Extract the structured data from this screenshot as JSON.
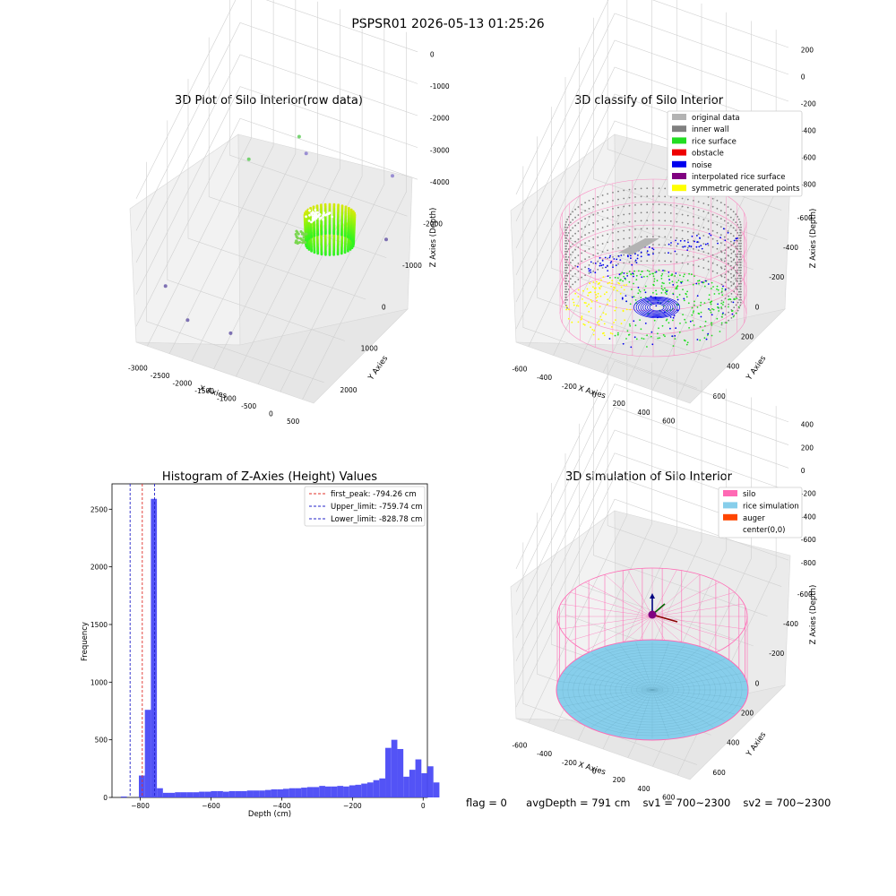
{
  "figure_title": "PSPSR01 2026-05-13 01:25:26",
  "status": {
    "flag": "flag = 0",
    "avg_depth": "avgDepth = 791 cm",
    "sv1": "sv1 = 700~2300",
    "sv2": "sv2 = 700~2300"
  },
  "colors": {
    "bar": "#4a4af5",
    "first_peak": "#e0302a",
    "limit_line": "#2323c8",
    "silo": "#ff69b4",
    "rice": "#87ceeb",
    "rice_surface": "#22dd22",
    "inner_wall": "#808080",
    "original": "#b3b3b3",
    "noise": "#0000ee",
    "obstacle": "#ee0000",
    "interp": "#800080",
    "symmetric": "#ffff00",
    "auger": "#ff4500"
  },
  "chart_data": [
    {
      "type": "scatter",
      "projection": "3d",
      "title": "3D Plot of Silo Interior(row data)",
      "xlabel": "X Axies",
      "ylabel": "Y Axies",
      "zlabel": "Z Axies (Depth)",
      "x_ticks": [
        "-3000",
        "-2500",
        "-2000",
        "-1500",
        "-1000",
        "-500",
        "0",
        "500"
      ],
      "y_ticks": [
        "-2000",
        "-1000",
        "0",
        "1000",
        "2000"
      ],
      "z_ticks": [
        "0",
        "-1000",
        "-2000",
        "-3000",
        "-4000"
      ],
      "xlim": [
        -3100,
        600
      ],
      "ylim": [
        -2300,
        2400
      ],
      "zlim": [
        -4300,
        100
      ],
      "grid": true,
      "outliers": [
        {
          "x": -2950,
          "y": -1300,
          "z": -3900
        },
        {
          "x": -2350,
          "y": -1600,
          "z": -4200
        },
        {
          "x": -1500,
          "y": -1500,
          "z": -4300
        },
        {
          "x": -1400,
          "y": 1700,
          "z": -3200
        },
        {
          "x": -1950,
          "y": 300,
          "z": -1900
        },
        {
          "x": -900,
          "y": 300,
          "z": -800
        },
        {
          "x": 500,
          "y": 1200,
          "z": -4100
        },
        {
          "x": 400,
          "y": 1700,
          "z": -3000
        }
      ],
      "cluster": {
        "center": [
          0,
          0
        ],
        "radius": 700,
        "z_top": -800,
        "z_bottom": -2000,
        "color_scale": "viridis"
      }
    },
    {
      "type": "scatter",
      "projection": "3d",
      "title": "3D classify of Silo Interior",
      "xlabel": "X Axies",
      "ylabel": "Y Axies",
      "zlabel": "Z Axies (Depth)",
      "x_ticks": [
        "-600",
        "-400",
        "-200",
        "0",
        "200",
        "400",
        "600"
      ],
      "y_ticks": [
        "-600",
        "-400",
        "-200",
        "0",
        "200",
        "400",
        "600"
      ],
      "z_ticks": [
        "200",
        "0",
        "-200",
        "-400",
        "-600",
        "-800"
      ],
      "xlim": [
        -700,
        700
      ],
      "ylim": [
        -700,
        700
      ],
      "zlim": [
        -900,
        300
      ],
      "grid": true,
      "legend": [
        {
          "label": "original data",
          "color": "#b3b3b3"
        },
        {
          "label": "inner wall",
          "color": "#808080"
        },
        {
          "label": "rice surface",
          "color": "#22dd22"
        },
        {
          "label": "obstacle",
          "color": "#ee0000"
        },
        {
          "label": "noise",
          "color": "#0000ee"
        },
        {
          "label": "interpolated rice surface",
          "color": "#800080"
        },
        {
          "label": "symmetric generated points",
          "color": "#ffff00"
        }
      ],
      "legend_loc": "upper right"
    },
    {
      "type": "bar",
      "title": "Histogram of Z-Axies (Height) Values",
      "xlabel": "Depth (cm)",
      "ylabel": "Frequency",
      "x_ticks": [
        "−800",
        "−600",
        "−400",
        "−200",
        "0"
      ],
      "y_ticks": [
        "0",
        "500",
        "1000",
        "1500",
        "2000",
        "2500"
      ],
      "xlim": [
        -880,
        12
      ],
      "ylim": [
        0,
        2720
      ],
      "bin_width": 17,
      "bin_start": -855,
      "values": [
        8,
        0,
        0,
        190,
        760,
        2590,
        80,
        40,
        40,
        45,
        45,
        45,
        45,
        50,
        50,
        55,
        55,
        50,
        55,
        55,
        55,
        60,
        60,
        60,
        65,
        70,
        70,
        75,
        80,
        80,
        85,
        90,
        90,
        100,
        95,
        95,
        100,
        95,
        105,
        110,
        120,
        130,
        150,
        165,
        430,
        500,
        420,
        180,
        240,
        330,
        210,
        270,
        130
      ],
      "vlines": [
        {
          "label": "first_peak: -794.26 cm",
          "x": -794.26,
          "color": "#e0302a"
        },
        {
          "label": "Upper_limit: -759.74 cm",
          "x": -759.74,
          "color": "#2323c8"
        },
        {
          "label": "Lower_limit: -828.78 cm",
          "x": -828.78,
          "color": "#2323c8"
        }
      ],
      "legend_loc": "upper right"
    },
    {
      "type": "scatter",
      "projection": "3d",
      "title": "3D simulation of Silo Interior",
      "xlabel": "X Axies",
      "ylabel": "Y Axies",
      "zlabel": "Z Axies (Depth)",
      "x_ticks": [
        "-600",
        "-400",
        "-200",
        "0",
        "200",
        "400",
        "600"
      ],
      "y_ticks": [
        "-600",
        "-400",
        "-200",
        "0",
        "200",
        "400",
        "600"
      ],
      "z_ticks": [
        "400",
        "200",
        "0",
        "-200",
        "-400",
        "-600",
        "-800"
      ],
      "xlim": [
        -700,
        700
      ],
      "ylim": [
        -700,
        700
      ],
      "zlim": [
        -900,
        450
      ],
      "grid": true,
      "legend": [
        {
          "label": "silo",
          "color": "#ff69b4"
        },
        {
          "label": "rice simulation",
          "color": "#87ceeb"
        },
        {
          "label": "auger",
          "color": "#ff4500"
        },
        {
          "label": "center(0,0)",
          "color": ""
        }
      ],
      "legend_loc": "upper right"
    }
  ]
}
